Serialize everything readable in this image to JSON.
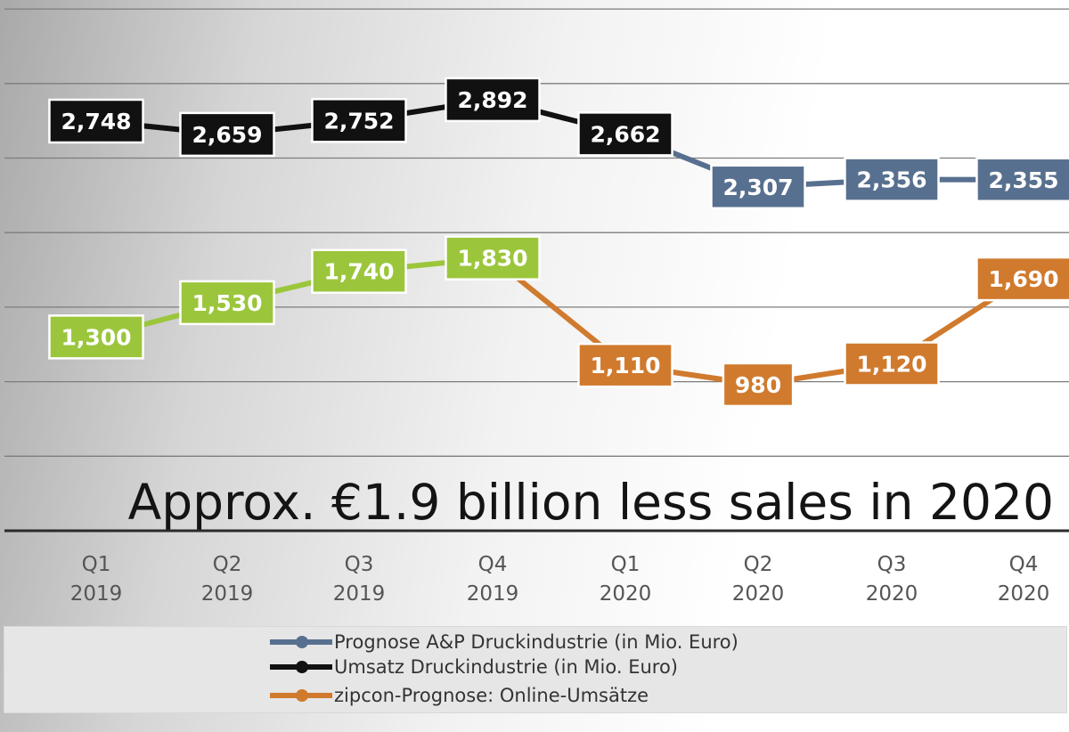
{
  "chart_data": {
    "type": "line",
    "categories": [
      "Q1\n2019",
      "Q2\n2019",
      "Q3\n2019",
      "Q4\n2019",
      "Q1\n2020",
      "Q2\n2020",
      "Q3\n2020",
      "Q4\n2020"
    ],
    "tick_lines": [
      [
        "Q1",
        "2019"
      ],
      [
        "Q2",
        "2019"
      ],
      [
        "Q3",
        "2019"
      ],
      [
        "Q4",
        "2019"
      ],
      [
        "Q1",
        "2020"
      ],
      [
        "Q2",
        "2020"
      ],
      [
        "Q3",
        "2020"
      ],
      [
        "Q4",
        "2020"
      ]
    ],
    "series": [
      {
        "name": "Prognose A&P Druckindustrie (in Mio. Euro)",
        "color": "#58708f",
        "values": [
          null,
          null,
          null,
          null,
          2662,
          2307,
          2356,
          2355
        ]
      },
      {
        "name": "Umsatz Druckindustrie (in Mio. Euro)",
        "color": "#111111",
        "values": [
          2748,
          2659,
          2752,
          2892,
          2662,
          null,
          null,
          null
        ]
      },
      {
        "name": "zipcon-Prognose: Online-Umsätze",
        "color": "#d07a2e",
        "values": [
          null,
          null,
          null,
          1830,
          1110,
          980,
          1120,
          1690
        ]
      }
    ],
    "extra_series": [
      {
        "color": "#9bc63c",
        "values": [
          1300,
          1530,
          1740,
          1830,
          null,
          null,
          null,
          null
        ]
      }
    ],
    "data_labels": [
      {
        "text": "2,748",
        "value": 2748,
        "index": 0,
        "color": "#111111"
      },
      {
        "text": "2,659",
        "value": 2659,
        "index": 1,
        "color": "#111111"
      },
      {
        "text": "2,752",
        "value": 2752,
        "index": 2,
        "color": "#111111"
      },
      {
        "text": "2,892",
        "value": 2892,
        "index": 3,
        "color": "#111111"
      },
      {
        "text": "2,662",
        "value": 2662,
        "index": 4,
        "color": "#111111"
      },
      {
        "text": "2,307",
        "value": 2307,
        "index": 5,
        "color": "#58708f"
      },
      {
        "text": "2,356",
        "value": 2356,
        "index": 6,
        "color": "#58708f"
      },
      {
        "text": "2,355",
        "value": 2355,
        "index": 7,
        "color": "#58708f"
      },
      {
        "text": "1,300",
        "value": 1300,
        "index": 0,
        "color": "#9bc63c"
      },
      {
        "text": "1,530",
        "value": 1530,
        "index": 1,
        "color": "#9bc63c"
      },
      {
        "text": "1,740",
        "value": 1740,
        "index": 2,
        "color": "#9bc63c"
      },
      {
        "text": "1,830",
        "value": 1830,
        "index": 3,
        "color": "#9bc63c"
      },
      {
        "text": "1,110",
        "value": 1110,
        "index": 4,
        "color": "#d07a2e"
      },
      {
        "text": "980",
        "value": 980,
        "index": 5,
        "color": "#d07a2e"
      },
      {
        "text": "1,120",
        "value": 1120,
        "index": 6,
        "color": "#d07a2e"
      },
      {
        "text": "1,690",
        "value": 1690,
        "index": 7,
        "color": "#d07a2e"
      }
    ],
    "annotation": "Approx. €1.9 billion less sales in 2020",
    "ylim": [
      0,
      3300
    ],
    "grid": true,
    "legend_position": "bottom"
  }
}
